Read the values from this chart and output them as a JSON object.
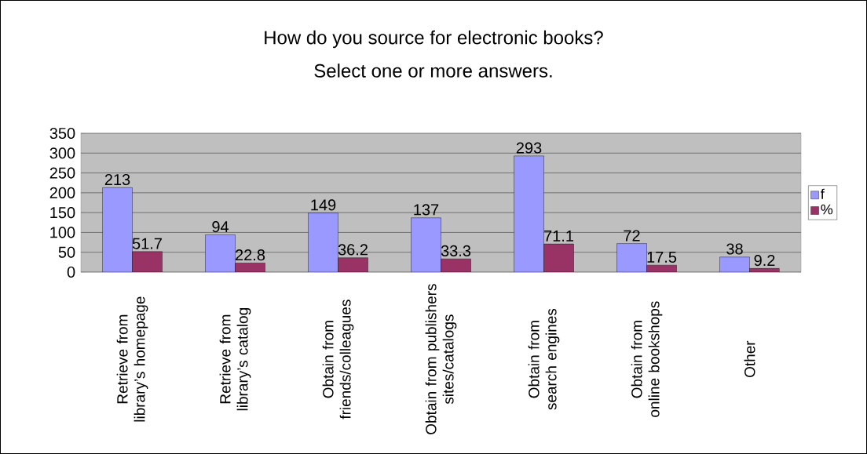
{
  "chart_data": {
    "type": "bar",
    "title": "How do you source for electronic books?",
    "subtitle": "Select one or more answers.",
    "categories": [
      "Retrieve from library’s homepage",
      "Retrieve from library’s catalog",
      "Obtain from friends/colleagues",
      "Obtain from publishers sites/catalogs",
      "Obtain from search engines",
      "Obtain from online bookshops",
      "Other"
    ],
    "series": [
      {
        "name": "f",
        "color": "#9999ff",
        "values": [
          213,
          94,
          149,
          137,
          293,
          72,
          38
        ]
      },
      {
        "name": "%",
        "color": "#993366",
        "values": [
          51.7,
          22.8,
          36.2,
          33.3,
          71.1,
          17.5,
          9.2
        ]
      }
    ],
    "ylim": [
      0,
      350
    ],
    "yticks": [
      0,
      50,
      100,
      150,
      200,
      250,
      300,
      350
    ],
    "grid": "y",
    "legend": "right",
    "data_labels": true
  }
}
